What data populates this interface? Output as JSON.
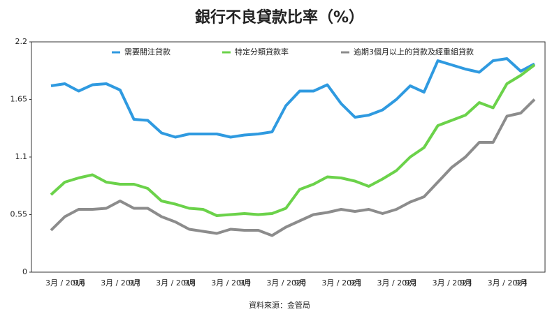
{
  "chart_data": {
    "type": "line",
    "title": "銀行不良貸款比率（%）",
    "source": "資料來源：金管局",
    "categories": [
      "3月 / 2016",
      null,
      "9月",
      null,
      "3月 / 2017",
      null,
      "9月",
      null,
      "3月 / 2018",
      null,
      "9月",
      null,
      "3月 / 2019",
      null,
      "9月",
      null,
      "3月 / 2020",
      null,
      "9月",
      null,
      "3月 / 2021",
      null,
      "9月",
      null,
      "3月 / 2022",
      null,
      "9月",
      null,
      "3月 / 2023",
      null,
      "9月",
      null,
      "3月 / 2024",
      null,
      "9月",
      null
    ],
    "series": [
      {
        "name": "需要關注貸款",
        "color": "#2f9ae0",
        "values": [
          1.78,
          1.8,
          1.73,
          1.79,
          1.8,
          1.74,
          1.46,
          1.45,
          1.33,
          1.29,
          1.32,
          1.32,
          1.32,
          1.29,
          1.31,
          1.32,
          1.34,
          1.59,
          1.73,
          1.73,
          1.79,
          1.61,
          1.48,
          1.5,
          1.55,
          1.65,
          1.78,
          1.72,
          2.02,
          1.98,
          1.94,
          1.91,
          2.02,
          2.04,
          1.92,
          1.99
        ]
      },
      {
        "name": "特定分類貸款率",
        "color": "#6bd24a",
        "values": [
          0.74,
          0.86,
          0.9,
          0.93,
          0.86,
          0.84,
          0.84,
          0.8,
          0.68,
          0.65,
          0.61,
          0.6,
          0.54,
          0.55,
          0.56,
          0.55,
          0.56,
          0.61,
          0.79,
          0.84,
          0.91,
          0.9,
          0.87,
          0.82,
          0.89,
          0.97,
          1.1,
          1.19,
          1.4,
          1.45,
          1.5,
          1.62,
          1.57,
          1.8,
          1.88,
          1.98
        ]
      },
      {
        "name": "逾期3個月以上的貸款及經重組貸款",
        "color": "#8c8c8c",
        "values": [
          0.4,
          0.53,
          0.6,
          0.6,
          0.61,
          0.68,
          0.61,
          0.61,
          0.53,
          0.48,
          0.41,
          0.39,
          0.37,
          0.41,
          0.4,
          0.4,
          0.35,
          0.43,
          0.49,
          0.55,
          0.57,
          0.6,
          0.58,
          0.6,
          0.56,
          0.6,
          0.67,
          0.72,
          0.86,
          1.0,
          1.1,
          1.24,
          1.24,
          1.49,
          1.52,
          1.65
        ]
      }
    ],
    "ylim": [
      0,
      2.2
    ],
    "yticks": [
      0,
      0.55,
      1.1,
      1.65,
      2.2
    ],
    "grid": false
  }
}
